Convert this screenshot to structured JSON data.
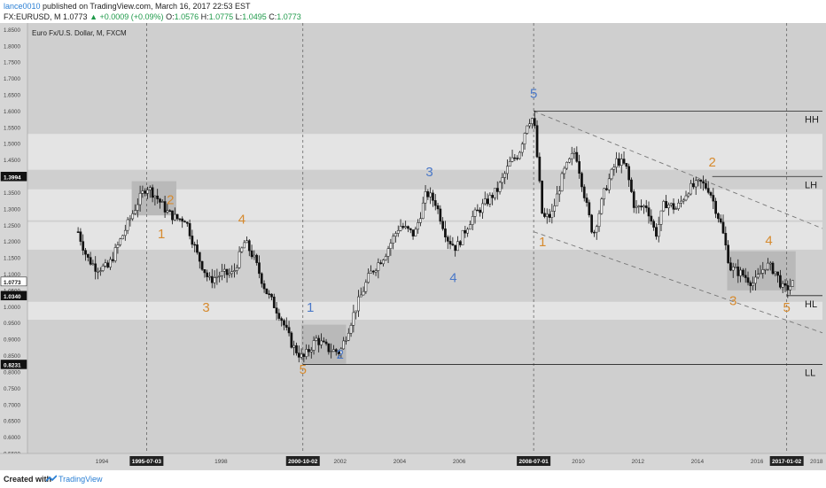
{
  "header": {
    "user": "lance0010",
    "published": " published on TradingView.com, March 16, 2017 22:53 EST",
    "symbol": "FX:EURUSD, M",
    "price": "1.0773",
    "change": "▲ +0.0009 (+0.09%)",
    "o_label": "O:",
    "o_value": "1.0576",
    "h_label": "H:",
    "h_value": "1.0775",
    "l_label": "L:",
    "l_value": "1.0495",
    "c_label": "C:",
    "c_value": "1.0773"
  },
  "footer": {
    "created_with": "Created with",
    "brand": "TradingView"
  },
  "chart_data": {
    "type": "candlestick",
    "title": "Euro Fx/U.S. Dollar, M, FXCM",
    "ylim": [
      0.55,
      1.87
    ],
    "xlim": [
      1991.5,
      2018.2
    ],
    "y_ticks": [
      "1.8500",
      "1.8000",
      "1.7500",
      "1.7000",
      "1.6500",
      "1.6000",
      "1.5500",
      "1.5000",
      "1.4500",
      "1.4000",
      "1.3500",
      "1.3000",
      "1.2500",
      "1.2000",
      "1.1500",
      "1.1000",
      "1.0500",
      "1.0000",
      "0.9500",
      "0.9000",
      "0.8500",
      "0.8000",
      "0.7500",
      "0.7000",
      "0.6500",
      "0.6000",
      "0.5500"
    ],
    "x_ticks": [
      {
        "x": 1994,
        "label": "1994"
      },
      {
        "x": 1998,
        "label": "1998"
      },
      {
        "x": 2002,
        "label": "2002"
      },
      {
        "x": 2004,
        "label": "2004"
      },
      {
        "x": 2006,
        "label": "2006"
      },
      {
        "x": 2010,
        "label": "2010"
      },
      {
        "x": 2012,
        "label": "2012"
      },
      {
        "x": 2014,
        "label": "2014"
      },
      {
        "x": 2016,
        "label": "2016"
      },
      {
        "x": 2018,
        "label": "2018"
      }
    ],
    "date_markers": [
      {
        "x": 1995.5,
        "label": "1995-07-03"
      },
      {
        "x": 2000.75,
        "label": "2000-10-02"
      },
      {
        "x": 2008.5,
        "label": "2008-07-01"
      },
      {
        "x": 2017.0,
        "label": "2017-01-02"
      }
    ],
    "price_labels": [
      {
        "y": 1.3994,
        "label": "1.3994"
      },
      {
        "y": 1.0773,
        "label": "1.0773"
      },
      {
        "y": 1.034,
        "label": "1.0340"
      },
      {
        "y": 0.8231,
        "label": "0.8231"
      }
    ],
    "zones": [
      {
        "x0": 1991.5,
        "x1": 2018.2,
        "y0": 1.015,
        "y1": 0.96,
        "fill": "#e4e4e4"
      },
      {
        "x0": 1991.5,
        "x1": 2018.2,
        "y0": 1.53,
        "y1": 1.42,
        "fill": "#e4e4e4"
      },
      {
        "x0": 1991.5,
        "x1": 2018.2,
        "y0": 1.36,
        "y1": 1.265,
        "fill": "#e4e4e4"
      },
      {
        "x0": 1991.5,
        "x1": 2018.2,
        "y0": 1.26,
        "y1": 1.175,
        "fill": "#e4e4e4"
      },
      {
        "x0": 1995.0,
        "x1": 1996.5,
        "y0": 1.385,
        "y1": 1.28,
        "fill": "#b9b9b9"
      },
      {
        "x0": 2000.7,
        "x1": 2002.2,
        "y0": 0.945,
        "y1": 0.825,
        "fill": "#b9b9b9"
      },
      {
        "x0": 2015.0,
        "x1": 2017.3,
        "y0": 1.17,
        "y1": 1.05,
        "fill": "#b9b9b9"
      }
    ],
    "horizontal_levels": [
      {
        "x0": 2008.5,
        "x1": 2018.2,
        "y": 1.6,
        "label": "HH"
      },
      {
        "x0": 2014.5,
        "x1": 2018.2,
        "y": 1.3994,
        "label": "LH"
      },
      {
        "x0": 2017.0,
        "x1": 2018.2,
        "y": 1.034,
        "label": "HL"
      },
      {
        "x0": 2000.75,
        "x1": 2018.2,
        "y": 0.8231,
        "label": "LL"
      }
    ],
    "trend_lines": [
      {
        "x0": 2008.5,
        "y0": 1.6,
        "x1": 2018.2,
        "y1": 1.24
      },
      {
        "x0": 2008.5,
        "y0": 1.23,
        "x1": 2018.2,
        "y1": 0.92
      }
    ],
    "wave_labels": [
      {
        "text": "2",
        "x": 1996.3,
        "y": 1.315,
        "color": "orange"
      },
      {
        "text": "1",
        "x": 1996.0,
        "y": 1.21,
        "color": "orange"
      },
      {
        "text": "4",
        "x": 1998.7,
        "y": 1.255,
        "color": "orange"
      },
      {
        "text": "3",
        "x": 1997.5,
        "y": 0.985,
        "color": "orange"
      },
      {
        "text": "1",
        "x": 2001.0,
        "y": 0.985,
        "color": "blue"
      },
      {
        "text": "5",
        "x": 2000.75,
        "y": 0.795,
        "color": "orange"
      },
      {
        "text": "2",
        "x": 2002.0,
        "y": 0.84,
        "color": "blue"
      },
      {
        "text": "3",
        "x": 2005.0,
        "y": 1.4,
        "color": "blue"
      },
      {
        "text": "4",
        "x": 2005.8,
        "y": 1.075,
        "color": "blue"
      },
      {
        "text": "5",
        "x": 2008.5,
        "y": 1.64,
        "color": "blue"
      },
      {
        "text": "1",
        "x": 2008.8,
        "y": 1.185,
        "color": "orange"
      },
      {
        "text": "2",
        "x": 2014.5,
        "y": 1.43,
        "color": "orange"
      },
      {
        "text": "4",
        "x": 2016.4,
        "y": 1.19,
        "color": "orange"
      },
      {
        "text": "3",
        "x": 2015.2,
        "y": 1.005,
        "color": "orange"
      },
      {
        "text": "5",
        "x": 2017.0,
        "y": 0.985,
        "color": "orange"
      }
    ],
    "series": [
      {
        "name": "EURUSD",
        "path": [
          [
            1993.2,
            1.23
          ],
          [
            1993.5,
            1.15
          ],
          [
            1993.8,
            1.12
          ],
          [
            1994.2,
            1.12
          ],
          [
            1994.6,
            1.2
          ],
          [
            1994.9,
            1.26
          ],
          [
            1995.2,
            1.32
          ],
          [
            1995.5,
            1.37
          ],
          [
            1995.8,
            1.34
          ],
          [
            1996.2,
            1.29
          ],
          [
            1996.5,
            1.27
          ],
          [
            1996.8,
            1.27
          ],
          [
            1997.2,
            1.16
          ],
          [
            1997.6,
            1.08
          ],
          [
            1998.0,
            1.1
          ],
          [
            1998.4,
            1.1
          ],
          [
            1998.8,
            1.2
          ],
          [
            1999.1,
            1.15
          ],
          [
            1999.5,
            1.05
          ],
          [
            2000.0,
            0.97
          ],
          [
            2000.4,
            0.88
          ],
          [
            2000.75,
            0.84
          ],
          [
            2001.2,
            0.9
          ],
          [
            2001.6,
            0.87
          ],
          [
            2002.0,
            0.86
          ],
          [
            2002.5,
            0.99
          ],
          [
            2003.0,
            1.1
          ],
          [
            2003.5,
            1.16
          ],
          [
            2004.0,
            1.25
          ],
          [
            2004.5,
            1.22
          ],
          [
            2004.9,
            1.35
          ],
          [
            2005.2,
            1.32
          ],
          [
            2005.6,
            1.21
          ],
          [
            2005.9,
            1.18
          ],
          [
            2006.4,
            1.27
          ],
          [
            2006.9,
            1.32
          ],
          [
            2007.3,
            1.36
          ],
          [
            2007.7,
            1.44
          ],
          [
            2008.0,
            1.47
          ],
          [
            2008.3,
            1.57
          ],
          [
            2008.5,
            1.58
          ],
          [
            2008.8,
            1.27
          ],
          [
            2009.1,
            1.28
          ],
          [
            2009.5,
            1.41
          ],
          [
            2009.9,
            1.48
          ],
          [
            2010.3,
            1.3
          ],
          [
            2010.5,
            1.22
          ],
          [
            2010.9,
            1.36
          ],
          [
            2011.3,
            1.45
          ],
          [
            2011.6,
            1.43
          ],
          [
            2011.9,
            1.3
          ],
          [
            2012.3,
            1.31
          ],
          [
            2012.6,
            1.22
          ],
          [
            2012.9,
            1.32
          ],
          [
            2013.3,
            1.3
          ],
          [
            2013.7,
            1.36
          ],
          [
            2014.1,
            1.38
          ],
          [
            2014.4,
            1.36
          ],
          [
            2014.8,
            1.25
          ],
          [
            2015.1,
            1.12
          ],
          [
            2015.5,
            1.1
          ],
          [
            2015.9,
            1.07
          ],
          [
            2016.3,
            1.13
          ],
          [
            2016.6,
            1.11
          ],
          [
            2016.9,
            1.05
          ],
          [
            2017.2,
            1.07
          ]
        ]
      }
    ]
  }
}
